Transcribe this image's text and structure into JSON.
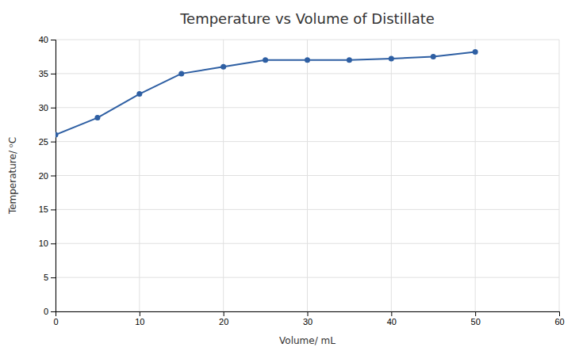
{
  "chart_data": {
    "type": "line",
    "title": "Temperature vs Volume of Distillate",
    "xlabel": "Volume/ mL",
    "ylabel": "Temperature/ ᵒC",
    "x": [
      0,
      5,
      10,
      15,
      20,
      25,
      30,
      35,
      40,
      45,
      50
    ],
    "values": [
      26,
      28.5,
      32,
      35,
      36,
      37,
      37,
      37,
      37.2,
      37.5,
      38.2
    ],
    "color": "#2E5FA3",
    "marker": "circle",
    "xlim": [
      0,
      60
    ],
    "ylim": [
      0,
      40
    ],
    "xticks": [
      0,
      10,
      20,
      30,
      40,
      50,
      60
    ],
    "yticks": [
      0,
      5,
      10,
      15,
      20,
      25,
      30,
      35,
      40
    ],
    "grid": true
  }
}
